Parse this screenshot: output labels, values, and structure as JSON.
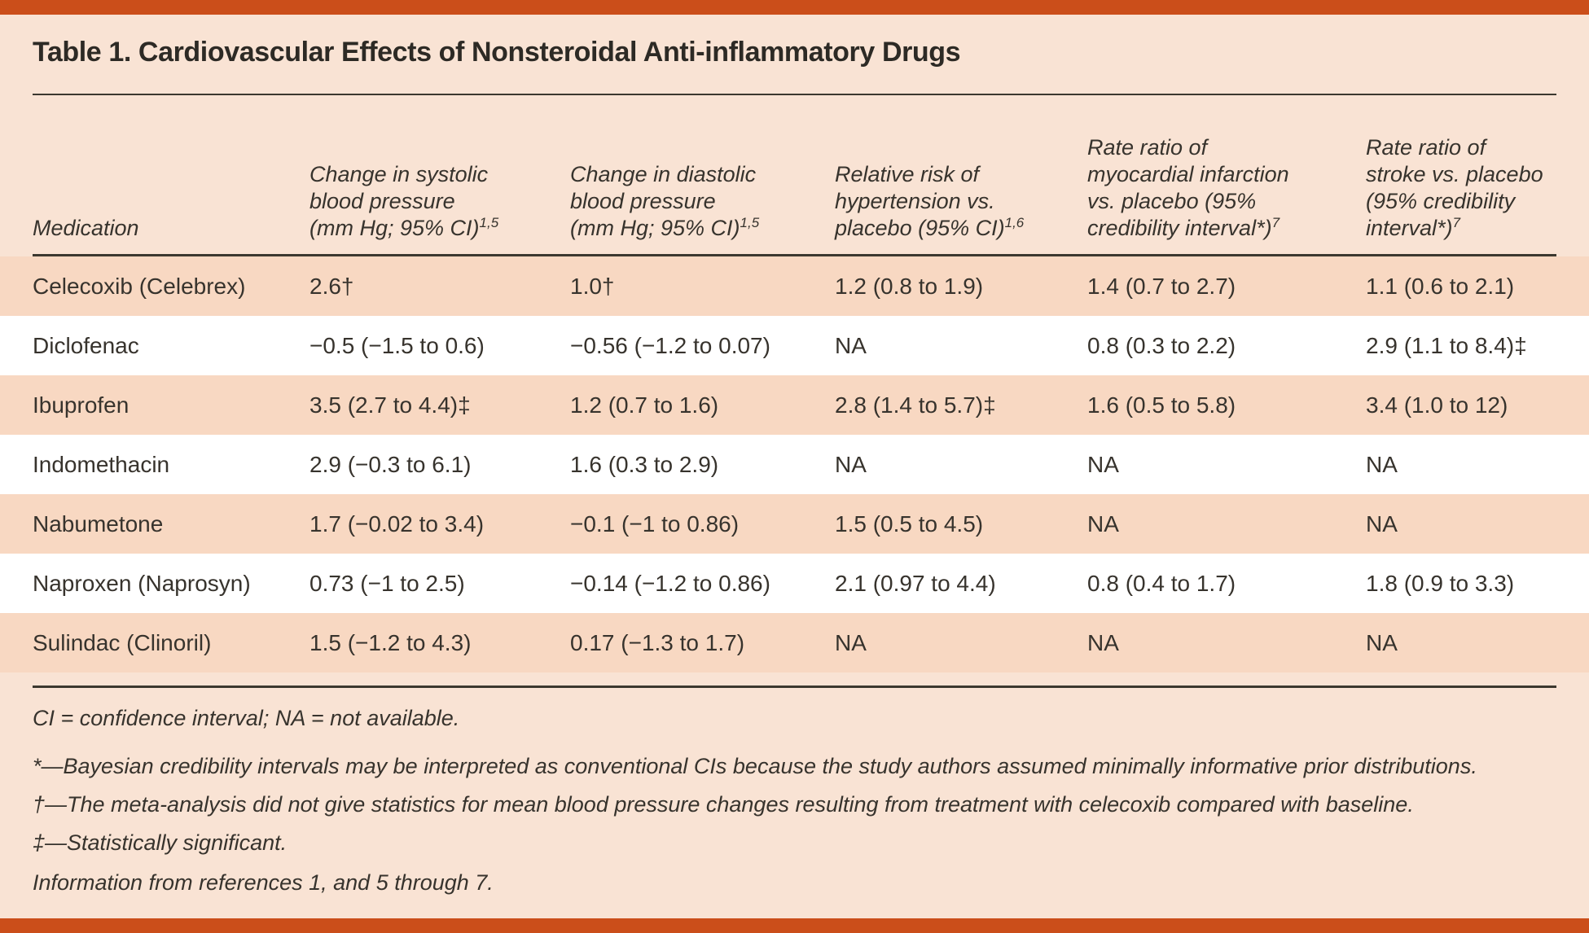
{
  "title": "Table 1. Cardiovascular Effects of Nonsteroidal Anti-inflammatory Drugs",
  "colors": {
    "accent": "#cb4e1a",
    "background": "#f9e3d4",
    "row_stripe": "#f8d8c2",
    "row_white": "#ffffff"
  },
  "columns": {
    "medication": {
      "lines": [
        "Medication"
      ],
      "sup": ""
    },
    "systolic": {
      "lines": [
        "Change in systolic",
        "blood pressure",
        "(mm Hg; 95% CI)"
      ],
      "sup": "1,5"
    },
    "diastolic": {
      "lines": [
        "Change in diastolic",
        "blood pressure",
        "(mm Hg; 95% CI)"
      ],
      "sup": "1,5"
    },
    "hypertension": {
      "lines": [
        "Relative risk of",
        "hypertension vs.",
        "placebo (95% CI)"
      ],
      "sup": "1,6"
    },
    "mi": {
      "lines": [
        "Rate ratio of",
        "myocardial infarction",
        "vs. placebo (95%",
        "credibility interval*)"
      ],
      "sup": "7"
    },
    "stroke": {
      "lines": [
        "Rate ratio of",
        "stroke vs. placebo",
        "(95% credibility",
        "interval*)"
      ],
      "sup": "7"
    }
  },
  "rows": [
    {
      "medication": "Celecoxib (Celebrex)",
      "systolic": "2.6†",
      "diastolic": "1.0†",
      "hypertension": "1.2 (0.8 to 1.9)",
      "mi": "1.4 (0.7 to 2.7)",
      "stroke": "1.1 (0.6 to 2.1)"
    },
    {
      "medication": "Diclofenac",
      "systolic": "−0.5 (−1.5 to 0.6)",
      "diastolic": "−0.56 (−1.2 to 0.07)",
      "hypertension": "NA",
      "mi": "0.8 (0.3 to 2.2)",
      "stroke": "2.9 (1.1 to 8.4)‡"
    },
    {
      "medication": "Ibuprofen",
      "systolic": "3.5 (2.7 to 4.4)‡",
      "diastolic": "1.2 (0.7 to 1.6)",
      "hypertension": "2.8 (1.4 to 5.7)‡",
      "mi": "1.6 (0.5 to 5.8)",
      "stroke": "3.4 (1.0 to 12)"
    },
    {
      "medication": "Indomethacin",
      "systolic": "2.9 (−0.3 to 6.1)",
      "diastolic": "1.6 (0.3 to 2.9)",
      "hypertension": "NA",
      "mi": "NA",
      "stroke": "NA"
    },
    {
      "medication": "Nabumetone",
      "systolic": "1.7 (−0.02 to 3.4)",
      "diastolic": "−0.1 (−1 to 0.86)",
      "hypertension": "1.5 (0.5 to 4.5)",
      "mi": "NA",
      "stroke": "NA"
    },
    {
      "medication": "Naproxen (Naprosyn)",
      "systolic": "0.73 (−1 to 2.5)",
      "diastolic": "−0.14 (−1.2 to 0.86)",
      "hypertension": "2.1 (0.97 to 4.4)",
      "mi": "0.8 (0.4 to 1.7)",
      "stroke": "1.8 (0.9 to 3.3)"
    },
    {
      "medication": "Sulindac (Clinoril)",
      "systolic": "1.5 (−1.2 to 4.3)",
      "diastolic": "0.17 (−1.3 to 1.7)",
      "hypertension": "NA",
      "mi": "NA",
      "stroke": "NA"
    }
  ],
  "footnotes": {
    "abbreviations": "CI = confidence interval; NA = not available.",
    "asterisk": "*—Bayesian credibility intervals may be interpreted as conventional CIs because the study authors assumed minimally informative prior distributions.",
    "dagger": "†—The meta-analysis did not give statistics for mean blood pressure changes resulting from treatment with celecoxib compared with baseline.",
    "double_dagger": "‡—Statistically significant.",
    "source": "Information from references 1, and 5 through 7."
  }
}
